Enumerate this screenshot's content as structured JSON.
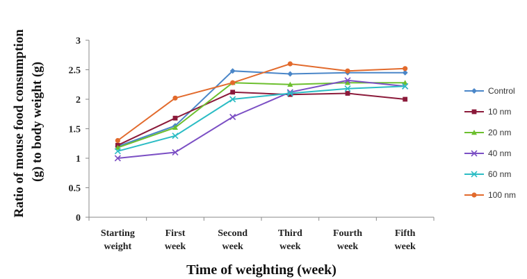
{
  "chart_data": {
    "type": "line",
    "title": "",
    "xlabel": "Time of weighting (week)",
    "ylabel_lines": [
      "Ratio of mouse food consumption",
      "(g) to body weight (g)"
    ],
    "ylim": [
      0,
      3
    ],
    "yticks": [
      "0",
      "0.5",
      "1",
      "1.5",
      "2",
      "2.5",
      "3"
    ],
    "ytick_values": [
      0,
      0.5,
      1,
      1.5,
      2,
      2.5,
      3
    ],
    "categories": [
      [
        "Starting",
        "weight"
      ],
      [
        "First",
        "week"
      ],
      [
        "Second",
        "week"
      ],
      [
        "Third",
        "week"
      ],
      [
        "Fourth",
        "week"
      ],
      [
        "Fifth",
        "week"
      ]
    ],
    "grid": false,
    "legend_position": "right",
    "series": [
      {
        "name": "Control",
        "color": "#4a86c8",
        "marker": "diamond",
        "values": [
          1.2,
          1.55,
          2.48,
          2.43,
          2.45,
          2.45
        ]
      },
      {
        "name": "10 nm",
        "color": "#8b1a3a",
        "marker": "square",
        "values": [
          1.22,
          1.68,
          2.12,
          2.08,
          2.1,
          2.0
        ]
      },
      {
        "name": "20 nm",
        "color": "#6cbf2e",
        "marker": "triangle",
        "values": [
          1.18,
          1.52,
          2.28,
          2.25,
          2.28,
          2.28
        ]
      },
      {
        "name": "40 nm",
        "color": "#7b4fc4",
        "marker": "x",
        "values": [
          1.0,
          1.1,
          1.7,
          2.12,
          2.32,
          2.22
        ]
      },
      {
        "name": "60 nm",
        "color": "#2bbcc4",
        "marker": "x",
        "values": [
          1.12,
          1.38,
          2.0,
          2.1,
          2.18,
          2.22
        ]
      },
      {
        "name": "100 nm",
        "color": "#e26a2c",
        "marker": "circle",
        "values": [
          1.3,
          2.02,
          2.28,
          2.6,
          2.48,
          2.52
        ]
      }
    ]
  }
}
